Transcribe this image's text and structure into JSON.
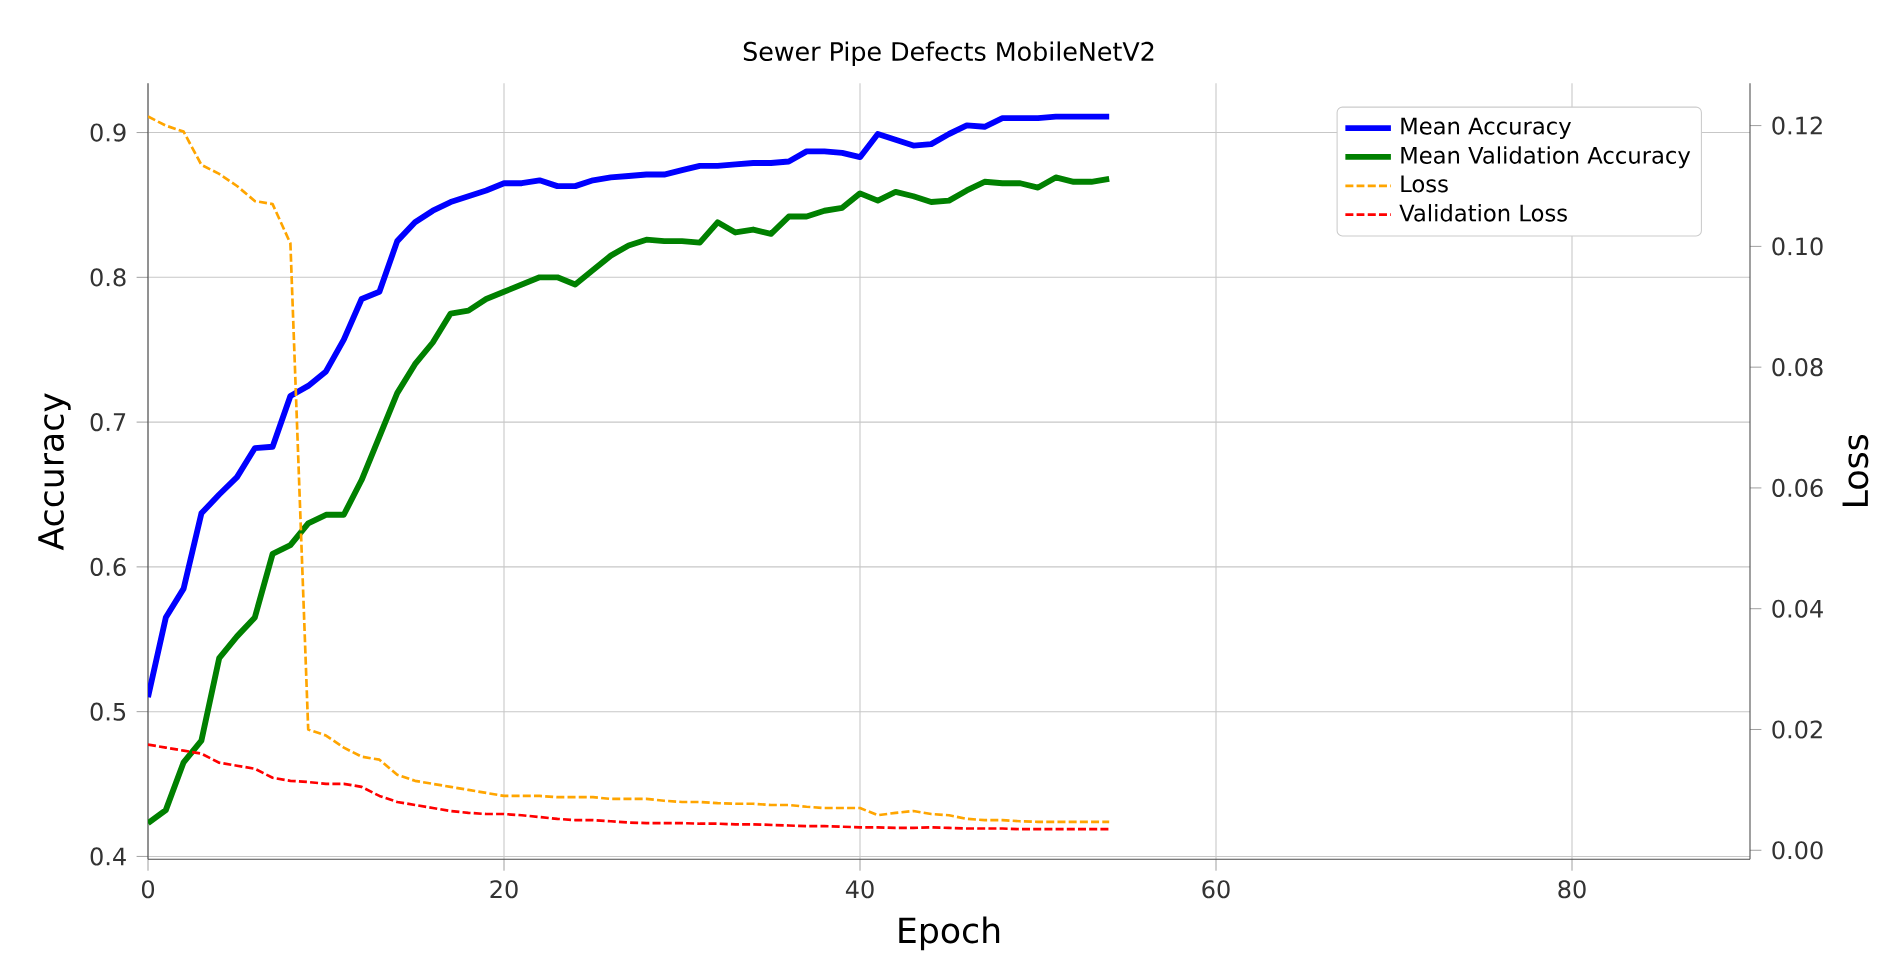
{
  "chart_data": {
    "type": "line",
    "title": "Sewer Pipe Defects MobileNetV2",
    "xlabel": "Epoch",
    "ylabel": "Accuracy",
    "y2label": "Loss",
    "x": [
      0,
      1,
      2,
      3,
      4,
      5,
      6,
      7,
      8,
      9,
      10,
      11,
      12,
      13,
      14,
      15,
      16,
      17,
      18,
      19,
      20,
      21,
      22,
      23,
      24,
      25,
      26,
      27,
      28,
      29,
      30,
      31,
      32,
      33,
      34,
      35,
      36,
      37,
      38,
      39,
      40,
      41,
      42,
      43,
      44,
      45,
      46,
      47,
      48,
      49,
      50,
      51,
      52,
      53,
      54
    ],
    "series": [
      {
        "name": "Mean Accuracy",
        "color": "#0000ff",
        "line_style": "solid",
        "values": [
          0.51,
          0.565,
          0.585,
          0.637,
          0.65,
          0.662,
          0.682,
          0.683,
          0.718,
          0.725,
          0.735,
          0.757,
          0.785,
          0.79,
          0.825,
          0.838,
          0.846,
          0.852,
          0.856,
          0.86,
          0.865,
          0.865,
          0.867,
          0.863,
          0.863,
          0.867,
          0.869,
          0.87,
          0.871,
          0.871,
          0.874,
          0.877,
          0.877,
          0.878,
          0.879,
          0.879,
          0.88,
          0.887,
          0.887,
          0.886,
          0.883,
          0.899,
          0.895,
          0.891,
          0.892,
          0.899,
          0.905,
          0.904,
          0.91,
          0.91,
          0.91,
          0.911,
          0.911,
          0.911,
          0.911
        ]
      },
      {
        "name": "Mean Validation Accuracy",
        "color": "#008000",
        "line_style": "solid",
        "values": [
          0.423,
          0.432,
          0.465,
          0.48,
          0.537,
          0.552,
          0.565,
          0.609,
          0.615,
          0.63,
          0.636,
          0.636,
          0.66,
          0.69,
          0.72,
          0.74,
          0.755,
          0.775,
          0.777,
          0.785,
          0.79,
          0.795,
          0.8,
          0.8,
          0.795,
          0.805,
          0.815,
          0.822,
          0.826,
          0.825,
          0.825,
          0.824,
          0.838,
          0.831,
          0.833,
          0.83,
          0.842,
          0.842,
          0.846,
          0.848,
          0.858,
          0.853,
          0.859,
          0.856,
          0.852,
          0.853,
          0.86,
          0.866,
          0.865,
          0.865,
          0.862,
          0.869,
          0.866,
          0.866,
          0.868
        ]
      },
      {
        "name": "Loss",
        "color": "#ffa500",
        "line_style": "dashed",
        "axis": "y2",
        "values": [
          0.1215,
          0.12,
          0.119,
          0.1135,
          0.112,
          0.11,
          0.1075,
          0.107,
          0.1005,
          0.02,
          0.019,
          0.017,
          0.0155,
          0.015,
          0.0125,
          0.0115,
          0.011,
          0.0105,
          0.01,
          0.0095,
          0.009,
          0.009,
          0.009,
          0.0088,
          0.0088,
          0.0088,
          0.0085,
          0.0085,
          0.0085,
          0.0082,
          0.008,
          0.008,
          0.0078,
          0.0077,
          0.0077,
          0.0075,
          0.0075,
          0.0072,
          0.007,
          0.007,
          0.007,
          0.0058,
          0.0062,
          0.0065,
          0.006,
          0.0058,
          0.0052,
          0.005,
          0.005,
          0.0048,
          0.0047,
          0.0047,
          0.0047,
          0.0047,
          0.0047
        ]
      },
      {
        "name": "Validation Loss",
        "color": "#ff0000",
        "line_style": "dashed",
        "axis": "y2",
        "values": [
          0.0175,
          0.017,
          0.0165,
          0.016,
          0.0145,
          0.014,
          0.0135,
          0.012,
          0.0115,
          0.0113,
          0.011,
          0.011,
          0.0105,
          0.009,
          0.008,
          0.0075,
          0.007,
          0.0065,
          0.0062,
          0.006,
          0.006,
          0.0058,
          0.0055,
          0.0052,
          0.005,
          0.005,
          0.0048,
          0.0046,
          0.0045,
          0.0045,
          0.0045,
          0.0044,
          0.0044,
          0.0043,
          0.0043,
          0.0042,
          0.0041,
          0.004,
          0.004,
          0.0039,
          0.0038,
          0.0038,
          0.0037,
          0.0037,
          0.0038,
          0.0037,
          0.0036,
          0.0036,
          0.0036,
          0.0035,
          0.0035,
          0.0035,
          0.0035,
          0.0035,
          0.0035
        ]
      }
    ],
    "xlim": [
      0,
      90
    ],
    "xticks": [
      0,
      20,
      40,
      60,
      80
    ],
    "ylim": [
      0.398,
      0.934
    ],
    "yticks": [
      0.4,
      0.5,
      0.6,
      0.7,
      0.8,
      0.9
    ],
    "y2lim": [
      -0.0015,
      0.127
    ],
    "y2ticks": [
      {
        "value": 0,
        "label": "0.00"
      },
      {
        "value": 0.02,
        "label": "0.02"
      },
      {
        "value": 0.04,
        "label": "0.04"
      },
      {
        "value": 0.06,
        "label": "0.06"
      },
      {
        "value": 0.08,
        "label": "0.08"
      },
      {
        "value": 0.1,
        "label": "0.10"
      },
      {
        "value": 0.12,
        "label": "0.12"
      }
    ],
    "grid": true,
    "legend": "top right"
  }
}
